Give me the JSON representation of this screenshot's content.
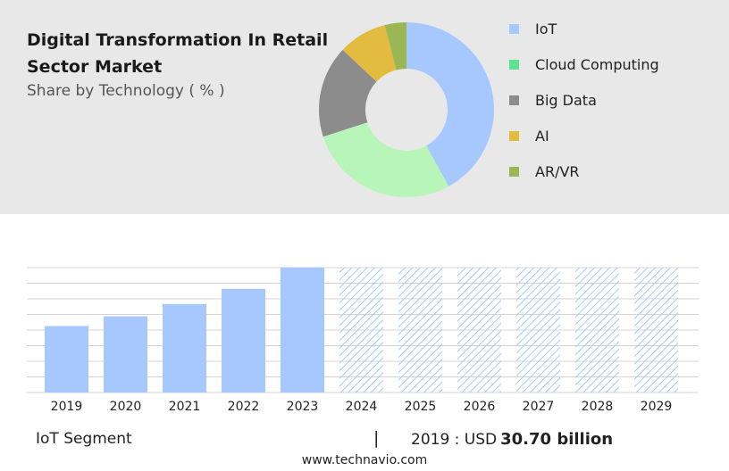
{
  "header": {
    "title": "Digital Transformation In Retail Sector Market",
    "subtitle": "Share by Technology ( % )"
  },
  "chart_data": [
    {
      "type": "pie",
      "style": "donut",
      "categories": [
        "IoT",
        "Cloud Computing",
        "Big Data",
        "AI",
        "AR/VR"
      ],
      "values": [
        42,
        28,
        17,
        9,
        4
      ],
      "colors": [
        "#a6c8ff",
        "#b8f5b8",
        "#8c8c8c",
        "#e3bb3e",
        "#9bb755"
      ],
      "legend_colors": [
        "#a6c8ff",
        "#5de290",
        "#8c8c8c",
        "#e3bb3e",
        "#9bb755"
      ],
      "legend_position": "right"
    },
    {
      "type": "bar",
      "categories": [
        "2019",
        "2020",
        "2021",
        "2022",
        "2023",
        "2024",
        "2025",
        "2026",
        "2027",
        "2028",
        "2029"
      ],
      "values": [
        30.7,
        35.2,
        40.9,
        47.9,
        57.7,
        57.7,
        57.7,
        57.7,
        57.7,
        57.7,
        57.7
      ],
      "forecast_from": "2024",
      "ylim": [
        0,
        57.7
      ],
      "grid": true,
      "colors": {
        "actual": "#a6c8ff",
        "forecast_hatch": "#a6c8ff",
        "grid": "#d4d4d4"
      }
    }
  ],
  "footer": {
    "segment": "IoT Segment",
    "separator": "|",
    "value_prefix": "2019 : USD",
    "value": "30.70 billion",
    "source": "www.technavio.com"
  }
}
